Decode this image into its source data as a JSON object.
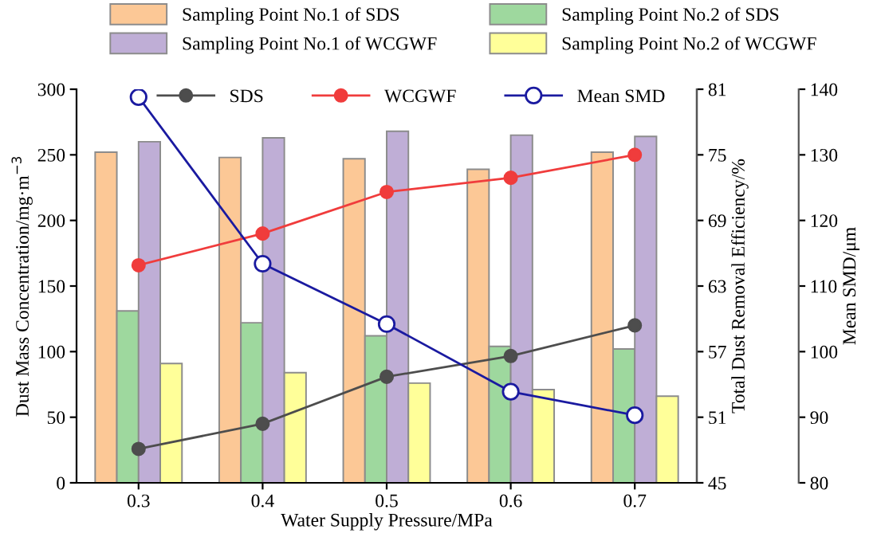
{
  "chart_data": {
    "type": "bar",
    "xlabel": "Water Supply Pressure/MPa",
    "ylabel": "Dust Mass Concentration/mg·m$^{−3}$",
    "y2label": "Total Dust Removal Efficiency/%",
    "y3label": "Mean SMD/μm",
    "categories": [
      "0.3",
      "0.4",
      "0.5",
      "0.6",
      "0.7"
    ],
    "series": [
      {
        "name": "Sampling Point No.1 of SDS",
        "color": "#fcc896",
        "values": [
          252,
          248,
          247,
          239,
          252
        ]
      },
      {
        "name": "Sampling Point No.2 of SDS",
        "color": "#9ed89e",
        "values": [
          131,
          122,
          112,
          104,
          102
        ]
      },
      {
        "name": "Sampling Point No.1 of WCGWF",
        "color": "#bfaed6",
        "values": [
          260,
          263,
          268,
          265,
          264
        ]
      },
      {
        "name": "Sampling Point No.2 of WCGWF",
        "color": "#ffff99",
        "values": [
          91,
          84,
          76,
          71,
          66
        ]
      },
      {
        "name": "SDS",
        "type": "line",
        "axis": "y2",
        "color": "#4d4d4d",
        "marker": "circle",
        "values": [
          48.1,
          50.4,
          54.7,
          56.6,
          59.4
        ]
      },
      {
        "name": "WCGWF",
        "type": "line",
        "axis": "y2",
        "color": "#f03c3c",
        "marker": "circle",
        "values": [
          64.9,
          67.8,
          71.6,
          72.9,
          75.0
        ]
      },
      {
        "name": "Mean SMD",
        "type": "line",
        "axis": "y3",
        "color": "#1a1aa0",
        "marker": "circle",
        "values": [
          138.8,
          113.4,
          104.2,
          93.9,
          90.3
        ]
      }
    ],
    "ylim": [
      0,
      300
    ],
    "yticks": [
      0,
      50,
      100,
      150,
      200,
      250,
      300
    ],
    "y2lim": [
      45,
      81
    ],
    "y2ticks": [
      45,
      51,
      57,
      63,
      69,
      75,
      81
    ],
    "y3lim": [
      80,
      140
    ],
    "y3ticks": [
      80,
      90,
      100,
      110,
      120,
      130,
      140
    ],
    "grid": false,
    "legend": "top"
  }
}
